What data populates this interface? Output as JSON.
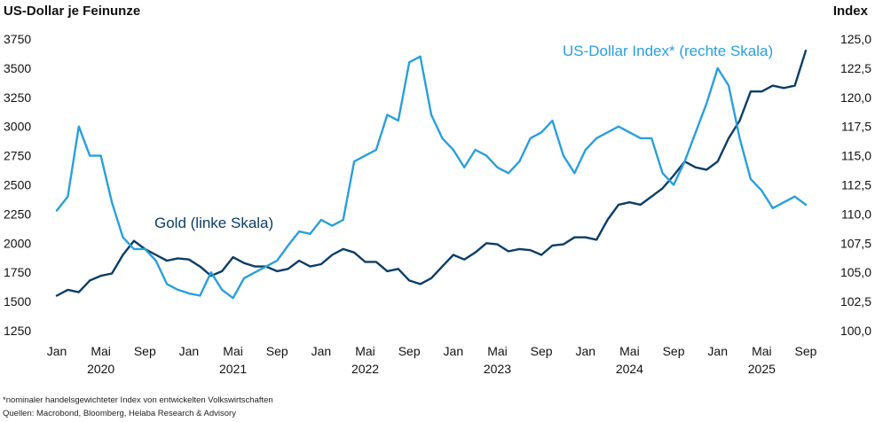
{
  "chart_data": {
    "type": "line",
    "ylabel": "US-Dollar je Feinunze",
    "y2label": "Index",
    "ylim": [
      1250,
      3750
    ],
    "y2lim": [
      100.0,
      125.0
    ],
    "yticks": [
      "1250",
      "1500",
      "1750",
      "2000",
      "2250",
      "2500",
      "2750",
      "3000",
      "3250",
      "3500",
      "3750"
    ],
    "y2ticks": [
      "100,0",
      "102,5",
      "105,0",
      "107,5",
      "110,0",
      "112,5",
      "115,0",
      "117,5",
      "120,0",
      "122,5",
      "125,0"
    ],
    "xticks": [
      "Jan",
      "Mai",
      "Sep",
      "Jan",
      "Mai",
      "Sep",
      "Jan",
      "Mai",
      "Sep",
      "Jan",
      "Mai",
      "Sep",
      "Jan",
      "Mai",
      "Sep",
      "Jan",
      "Mai",
      "Sep"
    ],
    "years": [
      "2020",
      "2021",
      "2022",
      "2023",
      "2024",
      "2025"
    ],
    "xlim": [
      "2020-01",
      "2025-09"
    ],
    "series": [
      {
        "name": "Gold (linke Skala)",
        "axis": "left",
        "color": "#0b3d66",
        "x": [
          "2020-01",
          "2020-02",
          "2020-03",
          "2020-04",
          "2020-05",
          "2020-06",
          "2020-07",
          "2020-08",
          "2020-09",
          "2020-10",
          "2020-11",
          "2020-12",
          "2021-01",
          "2021-02",
          "2021-03",
          "2021-04",
          "2021-05",
          "2021-06",
          "2021-07",
          "2021-08",
          "2021-09",
          "2021-10",
          "2021-11",
          "2021-12",
          "2022-01",
          "2022-02",
          "2022-03",
          "2022-04",
          "2022-05",
          "2022-06",
          "2022-07",
          "2022-08",
          "2022-09",
          "2022-10",
          "2022-11",
          "2022-12",
          "2023-01",
          "2023-02",
          "2023-03",
          "2023-04",
          "2023-05",
          "2023-06",
          "2023-07",
          "2023-08",
          "2023-09",
          "2023-10",
          "2023-11",
          "2023-12",
          "2024-01",
          "2024-02",
          "2024-03",
          "2024-04",
          "2024-05",
          "2024-06",
          "2024-07",
          "2024-08",
          "2024-09",
          "2024-10",
          "2024-11",
          "2024-12",
          "2025-01",
          "2025-02",
          "2025-03",
          "2025-04",
          "2025-05",
          "2025-06",
          "2025-07",
          "2025-08",
          "2025-09"
        ],
        "values": [
          1550,
          1600,
          1580,
          1680,
          1720,
          1740,
          1900,
          2020,
          1950,
          1900,
          1850,
          1870,
          1860,
          1800,
          1720,
          1760,
          1880,
          1830,
          1800,
          1800,
          1760,
          1780,
          1850,
          1800,
          1820,
          1900,
          1950,
          1920,
          1840,
          1840,
          1760,
          1780,
          1680,
          1650,
          1700,
          1800,
          1900,
          1860,
          1920,
          2000,
          1990,
          1930,
          1950,
          1940,
          1900,
          1980,
          1990,
          2050,
          2050,
          2030,
          2200,
          2330,
          2350,
          2330,
          2400,
          2470,
          2580,
          2700,
          2650,
          2630,
          2700,
          2900,
          3050,
          3300,
          3300,
          3350,
          3330,
          3350,
          3650
        ]
      },
      {
        "name": "US-Dollar Index* (rechte Skala)",
        "axis": "right",
        "color": "#2a9fdc",
        "x": [
          "2020-01",
          "2020-02",
          "2020-03",
          "2020-04",
          "2020-05",
          "2020-06",
          "2020-07",
          "2020-08",
          "2020-09",
          "2020-10",
          "2020-11",
          "2020-12",
          "2021-01",
          "2021-02",
          "2021-03",
          "2021-04",
          "2021-05",
          "2021-06",
          "2021-07",
          "2021-08",
          "2021-09",
          "2021-10",
          "2021-11",
          "2021-12",
          "2022-01",
          "2022-02",
          "2022-03",
          "2022-04",
          "2022-05",
          "2022-06",
          "2022-07",
          "2022-08",
          "2022-09",
          "2022-10",
          "2022-11",
          "2022-12",
          "2023-01",
          "2023-02",
          "2023-03",
          "2023-04",
          "2023-05",
          "2023-06",
          "2023-07",
          "2023-08",
          "2023-09",
          "2023-10",
          "2023-11",
          "2023-12",
          "2024-01",
          "2024-02",
          "2024-03",
          "2024-04",
          "2024-05",
          "2024-06",
          "2024-07",
          "2024-08",
          "2024-09",
          "2024-10",
          "2024-11",
          "2024-12",
          "2025-01",
          "2025-02",
          "2025-03",
          "2025-04",
          "2025-05",
          "2025-06",
          "2025-07",
          "2025-08",
          "2025-09"
        ],
        "values": [
          110.3,
          111.5,
          117.5,
          115.0,
          115.0,
          111.0,
          108.0,
          107.0,
          107.0,
          106.0,
          104.0,
          103.5,
          103.2,
          103.0,
          105.0,
          103.5,
          102.8,
          104.5,
          105.0,
          105.5,
          106.0,
          107.3,
          108.5,
          108.3,
          109.5,
          109.0,
          109.5,
          114.5,
          115.0,
          115.5,
          118.5,
          118.0,
          123.0,
          123.5,
          118.5,
          116.5,
          115.5,
          114.0,
          115.5,
          115.0,
          114.0,
          113.5,
          114.5,
          116.5,
          117.0,
          118.0,
          115.0,
          113.5,
          115.5,
          116.5,
          117.0,
          117.5,
          117.0,
          116.5,
          116.5,
          113.5,
          112.5,
          114.5,
          117.0,
          119.5,
          122.5,
          121.0,
          116.5,
          113.0,
          112.0,
          110.5,
          111.0,
          111.5,
          110.8
        ]
      }
    ],
    "annotations": {
      "gold_label": "Gold (linke Skala)",
      "usd_label": "US-Dollar Index* (rechte Skala)"
    },
    "footnotes": [
      "*nominaler handelsgewichteter Index von entwickelten Volkswirtschaften",
      "Quellen: Macrobond, Bloomberg, Helaba Research & Advisory"
    ],
    "grid": false
  }
}
